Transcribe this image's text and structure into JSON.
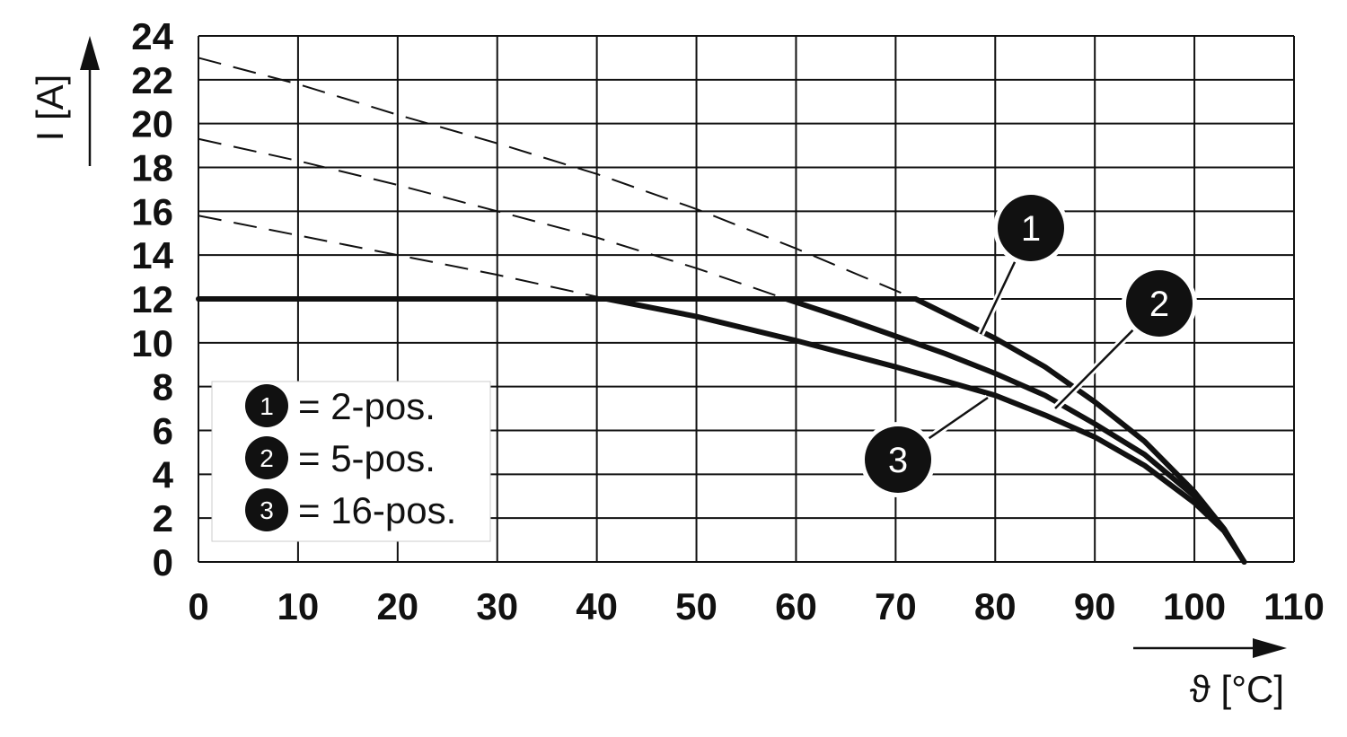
{
  "chart_data": {
    "type": "line",
    "title": "",
    "xlabel": "ϑ [°C]",
    "ylabel": "I [A]",
    "xlim": [
      0,
      110
    ],
    "ylim": [
      0,
      24
    ],
    "x_ticks": [
      "0",
      "10",
      "20",
      "30",
      "40",
      "50",
      "60",
      "70",
      "80",
      "90",
      "100",
      "110"
    ],
    "y_ticks": [
      "0",
      "2",
      "4",
      "6",
      "8",
      "10",
      "12",
      "14",
      "16",
      "18",
      "20",
      "22",
      "24"
    ],
    "grid": true,
    "limit_line": {
      "x": [
        0,
        72
      ],
      "y": [
        12,
        12
      ]
    },
    "series": [
      {
        "badge": "1",
        "legend_label": "= 2-pos.",
        "dashed_x": [
          0,
          10,
          20,
          30,
          40,
          50,
          60,
          72
        ],
        "dashed_y": [
          23.0,
          21.8,
          20.4,
          19.1,
          17.7,
          16.1,
          14.3,
          12.0
        ],
        "x": [
          72,
          80,
          85,
          90,
          95,
          100,
          103,
          105
        ],
        "y": [
          12.0,
          10.2,
          8.9,
          7.3,
          5.5,
          3.2,
          1.5,
          0
        ]
      },
      {
        "badge": "2",
        "legend_label": "= 5-pos.",
        "dashed_x": [
          0,
          10,
          20,
          30,
          40,
          50,
          59
        ],
        "dashed_y": [
          19.3,
          18.3,
          17.2,
          16.0,
          14.8,
          13.4,
          12.0
        ],
        "x": [
          59,
          65,
          70,
          75,
          80,
          85,
          90,
          95,
          100,
          103,
          105
        ],
        "y": [
          12.0,
          11.1,
          10.3,
          9.5,
          8.6,
          7.6,
          6.3,
          4.9,
          3.0,
          1.4,
          0
        ]
      },
      {
        "badge": "3",
        "legend_label": "= 16-pos.",
        "dashed_x": [
          0,
          10,
          20,
          30,
          41
        ],
        "dashed_y": [
          15.8,
          14.9,
          14.0,
          13.1,
          12.0
        ],
        "x": [
          41,
          50,
          60,
          70,
          80,
          85,
          90,
          95,
          100,
          103,
          105
        ],
        "y": [
          12.0,
          11.2,
          10.1,
          8.9,
          7.6,
          6.7,
          5.7,
          4.4,
          2.7,
          1.4,
          0
        ]
      }
    ]
  }
}
